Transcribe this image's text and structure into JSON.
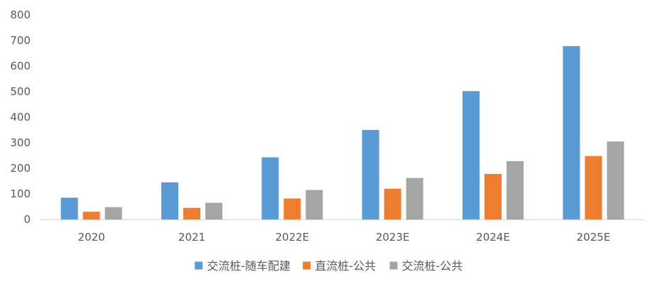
{
  "chart_data": {
    "type": "bar",
    "title": "",
    "xlabel": "",
    "ylabel": "",
    "categories": [
      "2020",
      "2021",
      "2022E",
      "2023E",
      "2024E",
      "2025E"
    ],
    "series": [
      {
        "name": "交流桩-随车配建",
        "color": "#5B9BD5",
        "values": [
          85,
          145,
          243,
          350,
          502,
          678
        ]
      },
      {
        "name": "直流桩-公共",
        "color": "#ED7D31",
        "values": [
          30,
          45,
          82,
          120,
          178,
          248
        ]
      },
      {
        "name": "交流桩-公共",
        "color": "#A5A5A5",
        "values": [
          48,
          65,
          115,
          162,
          228,
          305
        ]
      }
    ],
    "ylim": [
      0,
      800
    ],
    "yticks": [
      0,
      100,
      200,
      300,
      400,
      500,
      600,
      700,
      800
    ],
    "grid": false,
    "legend": "bottom-center"
  }
}
